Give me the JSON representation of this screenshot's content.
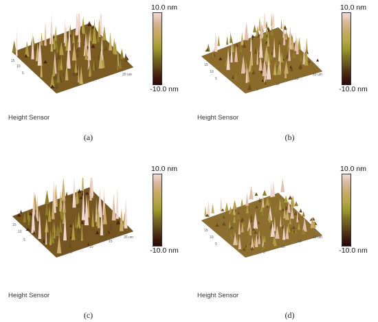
{
  "colorbar": {
    "max_label": "10.0 nm",
    "min_label": "-10.0 nm"
  },
  "sensor_label": "Height Sensor",
  "axis_unit": "um",
  "axis_ticks": [
    "5",
    "10",
    "15",
    "20"
  ],
  "panels": [
    {
      "id": "a",
      "label": "(a)"
    },
    {
      "id": "b",
      "label": "(b)"
    },
    {
      "id": "c",
      "label": "(c)"
    },
    {
      "id": "d",
      "label": "(d)"
    }
  ],
  "colors": {
    "surface_high": "#f0d6cc",
    "surface_mid": "#a89a3a",
    "surface_low": "#3a1208"
  }
}
